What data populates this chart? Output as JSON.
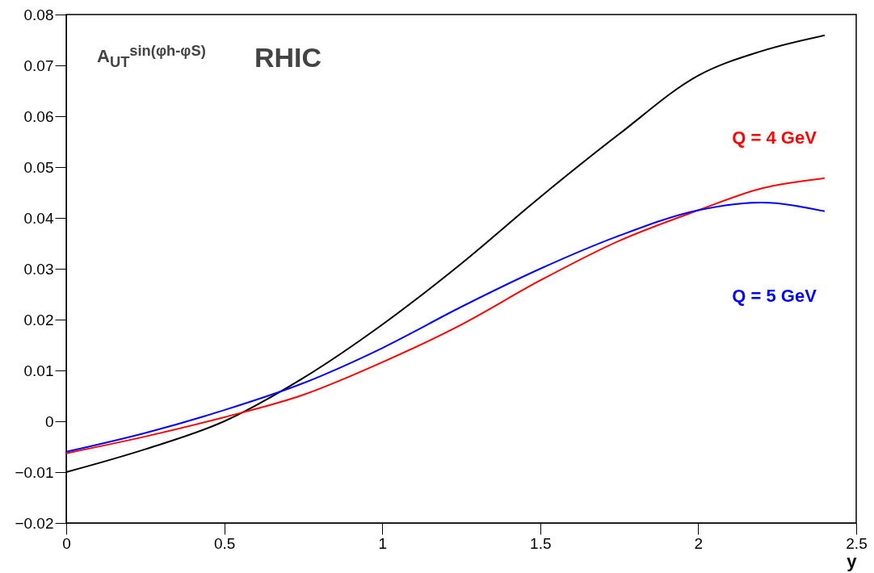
{
  "chart_data": {
    "type": "line",
    "xlabel": "y",
    "annotations": [
      "A$_{UT}$$^{sin(φh-φS)}$",
      "RHIC"
    ],
    "x": [
      0,
      0.25,
      0.5,
      0.75,
      1.0,
      1.25,
      1.5,
      1.75,
      2.0,
      2.2,
      2.4
    ],
    "series": [
      {
        "color": "#000000",
        "values": [
          -0.01,
          -0.0055,
          0.0,
          0.0085,
          0.019,
          0.031,
          0.0441,
          0.0565,
          0.068,
          0.0728,
          0.0759
        ]
      },
      {
        "name": "Q = 4 GeV",
        "color": "#ff0000",
        "values": [
          -0.0063,
          -0.003,
          0.0008,
          0.0052,
          0.0116,
          0.019,
          0.0277,
          0.0355,
          0.0415,
          0.0458,
          0.0478
        ]
      },
      {
        "name": "Q = 5 GeV",
        "color": "#0000ff",
        "values": [
          -0.006,
          -0.0023,
          0.0022,
          0.0075,
          0.0144,
          0.0225,
          0.03,
          0.0365,
          0.0415,
          0.043,
          0.0413
        ]
      }
    ],
    "xlim": [
      0,
      2.5
    ],
    "xticks": [
      0,
      0.5,
      1,
      1.5,
      2,
      2.5
    ],
    "ylim": [
      -0.02,
      0.08
    ],
    "yticks": [
      -0.02,
      -0.01,
      0,
      0.01,
      0.02,
      0.03,
      0.04,
      0.05,
      0.06,
      0.07,
      0.08
    ],
    "grid": false,
    "marker": "none",
    "line_style": "solid"
  }
}
